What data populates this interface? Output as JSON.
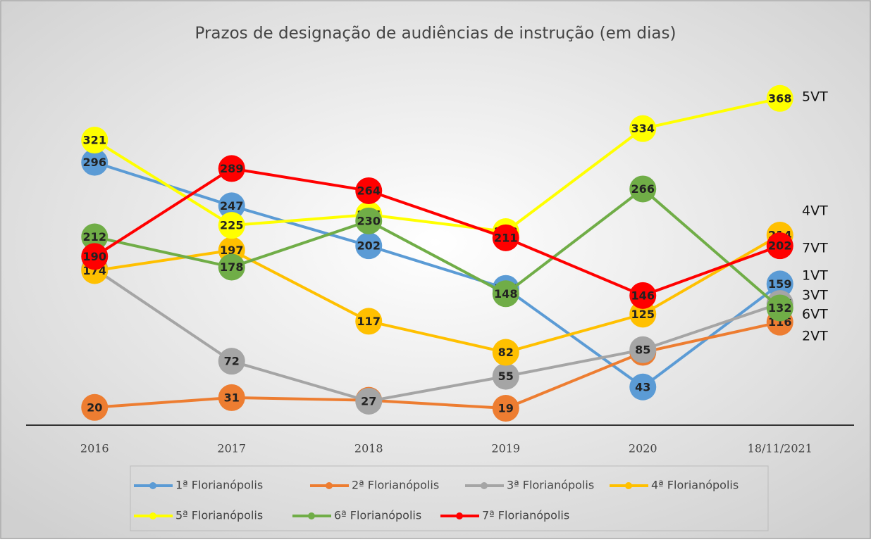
{
  "chart_data": {
    "type": "line",
    "title": "Prazos de designação de audiências de instrução (em dias)",
    "categories": [
      "2016",
      "2017",
      "2018",
      "2019",
      "2020",
      "18/11/2021"
    ],
    "ylim": [
      0,
      400
    ],
    "series": [
      {
        "name": "1ª Florianópolis",
        "color": "#5b9bd5",
        "values": [
          296,
          247,
          202,
          154,
          43,
          159
        ],
        "end_label": "1VT"
      },
      {
        "name": "2ª Florianópolis",
        "color": "#ed7d31",
        "values": [
          20,
          31,
          28,
          19,
          82,
          116
        ],
        "end_label": "2VT"
      },
      {
        "name": "3ª Florianópolis",
        "color": "#a5a5a5",
        "values": [
          176,
          72,
          27,
          55,
          85,
          137
        ],
        "end_label": "3VT"
      },
      {
        "name": "4ª Florianópolis",
        "color": "#ffc000",
        "values": [
          174,
          197,
          117,
          82,
          125,
          214
        ],
        "end_label": "4VT"
      },
      {
        "name": "5ª Florianópolis",
        "color": "#ffff00",
        "values": [
          321,
          225,
          237,
          218,
          334,
          368
        ],
        "end_label": "5VT"
      },
      {
        "name": "6ª Florianópolis",
        "color": "#70ad47",
        "values": [
          212,
          178,
          230,
          148,
          266,
          132
        ],
        "end_label": "6VT"
      },
      {
        "name": "7ª Florianópolis",
        "color": "#ff0000",
        "values": [
          190,
          289,
          264,
          211,
          146,
          202
        ],
        "end_label": "7VT"
      }
    ]
  }
}
